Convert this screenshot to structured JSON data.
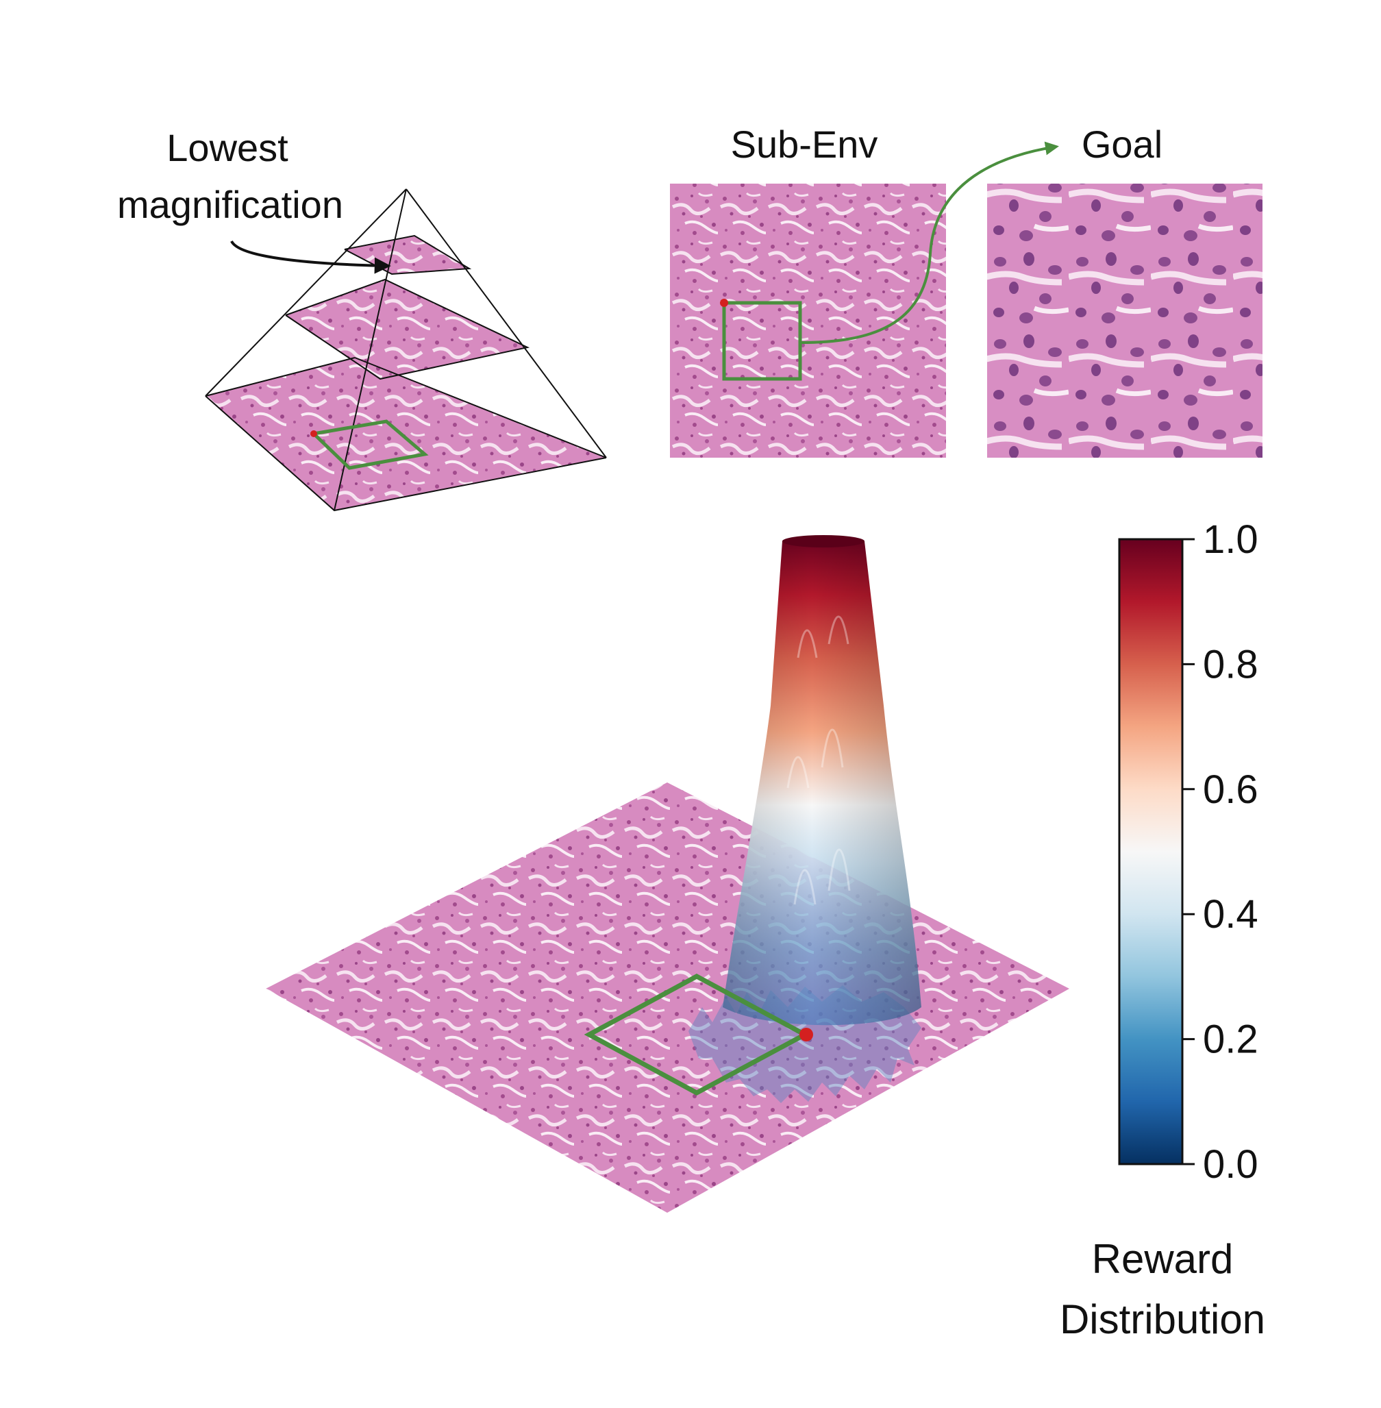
{
  "labels": {
    "lowest_line1": "Lowest",
    "lowest_line2": "magnification",
    "sub_env": "Sub-Env",
    "goal": "Goal",
    "reward_line1": "Reward",
    "reward_line2": "Distribution"
  },
  "colorbar": {
    "ticks": [
      "1.0",
      "0.8",
      "0.6",
      "0.4",
      "0.2",
      "0.0"
    ],
    "tick_values": [
      1.0,
      0.8,
      0.6,
      0.4,
      0.2,
      0.0
    ],
    "range": [
      0.0,
      1.0
    ],
    "colormap": "RdBu_r",
    "stops": [
      "#053061",
      "#2166ac",
      "#4393c3",
      "#92c5de",
      "#d1e5f0",
      "#f7f7f7",
      "#fddbc7",
      "#f4a582",
      "#d6604d",
      "#b2182b",
      "#67001f"
    ]
  },
  "colors": {
    "tissue": "#d98cc0",
    "tissue_dark": "#b2579a",
    "tissue_light": "#f3d6ea",
    "highlight_box": "#4a8f3e",
    "marker": "#d42020"
  },
  "icons": {
    "pyramid": "pyramid-icon",
    "arrow": "curved-arrow-icon"
  }
}
